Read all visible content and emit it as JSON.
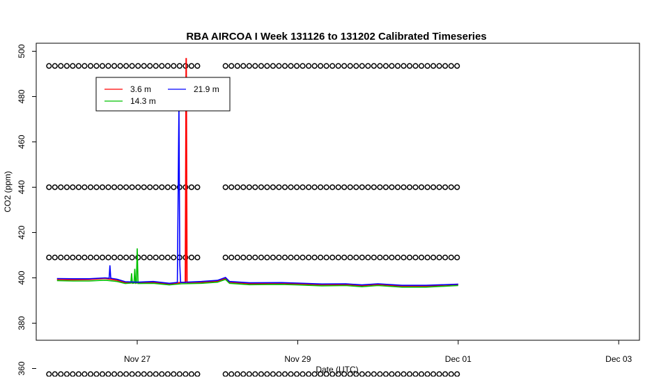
{
  "chart_data": {
    "type": "line",
    "title": "RBA AIRCOA I  Week 131126 to 131202  Calibrated Timeseries",
    "xlabel": "Date (UTC)",
    "ylabel": "CO2 (ppm)",
    "x_ticks": [
      {
        "label": "Nov 27",
        "day": 27
      },
      {
        "label": "Nov 29",
        "day": 29
      },
      {
        "label": "Dec 01",
        "day": 31
      },
      {
        "label": "Dec 03",
        "day": 33
      }
    ],
    "y_ticks": [
      360,
      380,
      400,
      420,
      440,
      460,
      480,
      500
    ],
    "xlim_day": [
      25.5,
      33.3
    ],
    "ylim": [
      352,
      502
    ],
    "grid": false,
    "legend": {
      "placement": "top-left"
    },
    "series": [
      {
        "name": "3.6 m",
        "color": "#ff0000",
        "points": [
          [
            26.0,
            399.4
          ],
          [
            26.2,
            399.2
          ],
          [
            26.4,
            399.3
          ],
          [
            26.6,
            399.8
          ],
          [
            26.75,
            399.0
          ],
          [
            26.85,
            398.0
          ],
          [
            27.0,
            397.8
          ],
          [
            27.2,
            398.1
          ],
          [
            27.4,
            397.3
          ],
          [
            27.55,
            398.0
          ],
          [
            27.6,
            398.0
          ],
          [
            27.61,
            497.0
          ],
          [
            27.62,
            398.0
          ],
          [
            27.8,
            398.1
          ],
          [
            28.0,
            398.6
          ],
          [
            28.1,
            399.8
          ],
          [
            28.15,
            398.1
          ],
          [
            28.4,
            397.5
          ],
          [
            28.8,
            397.6
          ],
          [
            29.0,
            397.4
          ],
          [
            29.3,
            397.0
          ],
          [
            29.6,
            397.1
          ],
          [
            29.8,
            396.6
          ],
          [
            30.0,
            397.1
          ],
          [
            30.3,
            396.4
          ],
          [
            30.6,
            396.4
          ],
          [
            31.0,
            397.1
          ]
        ]
      },
      {
        "name": "14.3 m",
        "color": "#00c000",
        "points": [
          [
            26.0,
            398.8
          ],
          [
            26.2,
            398.6
          ],
          [
            26.4,
            398.6
          ],
          [
            26.6,
            399.0
          ],
          [
            26.75,
            398.4
          ],
          [
            26.85,
            397.5
          ],
          [
            26.92,
            397.7
          ],
          [
            26.93,
            402.0
          ],
          [
            26.94,
            397.6
          ],
          [
            26.96,
            397.7
          ],
          [
            26.97,
            404.0
          ],
          [
            26.98,
            397.6
          ],
          [
            26.99,
            397.7
          ],
          [
            27.0,
            413.0
          ],
          [
            27.01,
            397.5
          ],
          [
            27.2,
            397.6
          ],
          [
            27.4,
            396.9
          ],
          [
            27.55,
            397.4
          ],
          [
            27.8,
            397.6
          ],
          [
            28.0,
            398.1
          ],
          [
            28.1,
            399.3
          ],
          [
            28.15,
            397.6
          ],
          [
            28.4,
            397.0
          ],
          [
            28.8,
            397.1
          ],
          [
            29.0,
            396.9
          ],
          [
            29.3,
            396.5
          ],
          [
            29.6,
            396.6
          ],
          [
            29.8,
            396.1
          ],
          [
            30.0,
            396.6
          ],
          [
            30.3,
            395.9
          ],
          [
            30.6,
            395.9
          ],
          [
            31.0,
            396.6
          ]
        ]
      },
      {
        "name": "21.9 m",
        "color": "#0000ff",
        "points": [
          [
            26.0,
            399.7
          ],
          [
            26.2,
            399.6
          ],
          [
            26.4,
            399.6
          ],
          [
            26.6,
            400.0
          ],
          [
            26.65,
            399.8
          ],
          [
            26.66,
            405.5
          ],
          [
            26.67,
            399.8
          ],
          [
            26.75,
            399.4
          ],
          [
            26.85,
            398.3
          ],
          [
            27.0,
            398.1
          ],
          [
            27.2,
            398.4
          ],
          [
            27.4,
            397.6
          ],
          [
            27.5,
            398.0
          ],
          [
            27.52,
            476.0
          ],
          [
            27.53,
            406.0
          ],
          [
            27.54,
            398.0
          ],
          [
            27.8,
            398.4
          ],
          [
            28.0,
            398.9
          ],
          [
            28.1,
            400.2
          ],
          [
            28.15,
            398.4
          ],
          [
            28.4,
            397.8
          ],
          [
            28.8,
            397.9
          ],
          [
            29.0,
            397.7
          ],
          [
            29.3,
            397.3
          ],
          [
            29.6,
            397.4
          ],
          [
            29.8,
            396.9
          ],
          [
            30.0,
            397.4
          ],
          [
            30.3,
            396.7
          ],
          [
            30.6,
            396.7
          ],
          [
            31.0,
            397.2
          ]
        ]
      }
    ],
    "markers": {
      "shape": "open-circle",
      "color": "#000000",
      "rows_y": [
        357.5,
        409,
        440,
        493.5
      ],
      "segments_day": [
        [
          25.9,
          27.75
        ],
        [
          28.1,
          31.0
        ]
      ],
      "spacing_day": 0.074
    }
  }
}
